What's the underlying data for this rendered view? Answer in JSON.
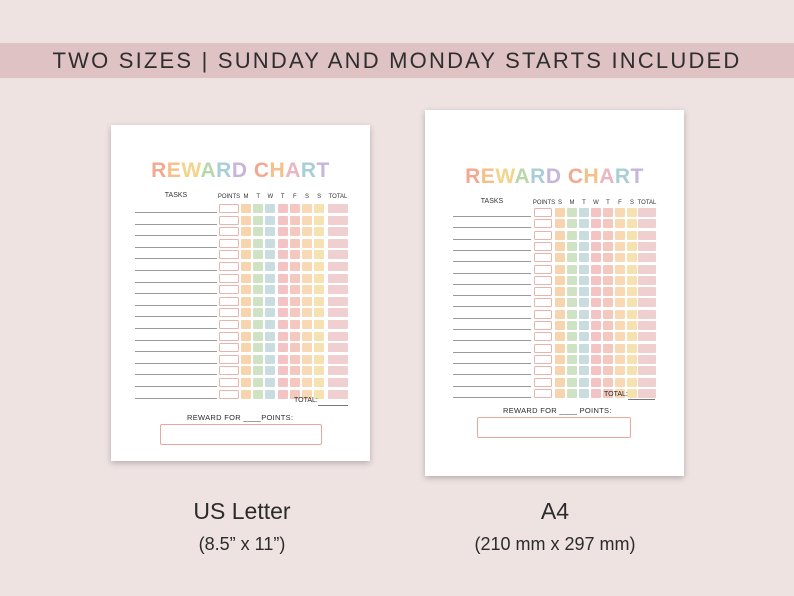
{
  "banner": {
    "text": "TWO SIZES | SUNDAY AND MONDAY STARTS INCLUDED"
  },
  "title_letters": [
    {
      "ch": "R",
      "color": "#f2a98f"
    },
    {
      "ch": "E",
      "color": "#f5c089"
    },
    {
      "ch": "W",
      "color": "#f4d48b"
    },
    {
      "ch": "A",
      "color": "#b9d7a8"
    },
    {
      "ch": "R",
      "color": "#a9cfd6"
    },
    {
      "ch": "D",
      "color": "#c7b6d9"
    },
    {
      "ch": " ",
      "color": "#ffffff"
    },
    {
      "ch": "C",
      "color": "#f2a98f"
    },
    {
      "ch": "H",
      "color": "#f5c089"
    },
    {
      "ch": "A",
      "color": "#e9b7c0"
    },
    {
      "ch": "R",
      "color": "#a9cfd6"
    },
    {
      "ch": "T",
      "color": "#c7b6d9"
    }
  ],
  "sheets": {
    "letter": {
      "tasks_label": "TASKS",
      "points_label": "POINTS",
      "days": [
        "M",
        "T",
        "W",
        "T",
        "F",
        "S",
        "S"
      ],
      "total_label": "TOTAL",
      "total_footer": "TOTAL:",
      "reward_text": "REWARD FOR ____POINTS:",
      "rows": 17
    },
    "a4": {
      "tasks_label": "TASKS",
      "points_label": "POINTS",
      "days": [
        "S",
        "M",
        "T",
        "W",
        "T",
        "F",
        "S"
      ],
      "total_label": "TOTAL",
      "total_footer": "TOTAL:",
      "reward_text": "REWARD FOR ____ POINTS:",
      "rows": 17
    }
  },
  "day_colors": [
    "#f7d3ae",
    "#cfe2c4",
    "#c9dde1",
    "#f4c4c4",
    "#f4c7bf",
    "#f8d9b4",
    "#f6e2b0"
  ],
  "total_color": "#efcfcf",
  "captions": {
    "letter": {
      "title": "US Letter",
      "size": "(8.5” x 11”)"
    },
    "a4": {
      "title": "A4",
      "size": "(210 mm x 297 mm)"
    }
  }
}
